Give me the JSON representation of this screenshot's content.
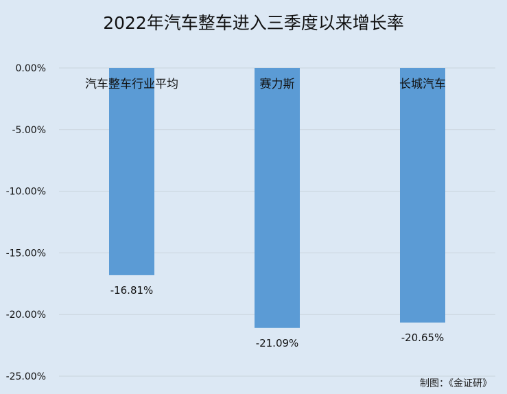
{
  "source_note": "制图：《金证研》",
  "colors": {
    "background": "#dce8f4",
    "bar": "#5b9bd5",
    "grid": "#c9d3dc",
    "text": "#111111"
  },
  "chart_data": {
    "type": "bar",
    "title": "2022年汽车整车进入三季度以来增长率",
    "xlabel": "",
    "ylabel": "",
    "categories": [
      "汽车整车行业平均",
      "赛力斯",
      "长城汽车"
    ],
    "values": [
      -16.81,
      -21.09,
      -20.65
    ],
    "data_labels": [
      "-16.81%",
      "-21.09%",
      "-20.65%"
    ],
    "ylim": [
      -25,
      0
    ],
    "y_ticks": [
      0,
      -5,
      -10,
      -15,
      -20,
      -25
    ],
    "y_tick_labels": [
      "0.00%",
      "-5.00%",
      "-10.00%",
      "-15.00%",
      "-20.00%",
      "-25.00%"
    ],
    "grid": true,
    "legend": "none",
    "category_label_position": "top"
  }
}
